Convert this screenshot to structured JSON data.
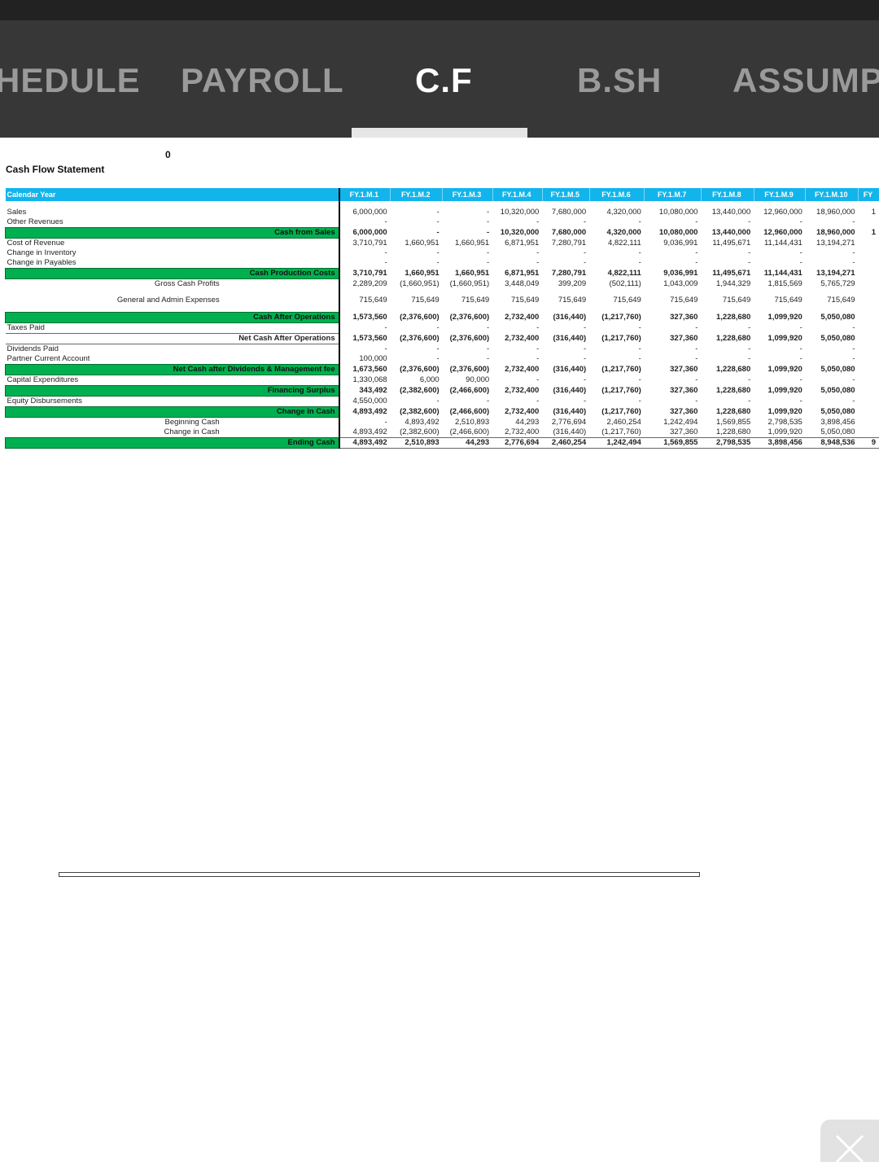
{
  "tabs": [
    {
      "label": "HEDULE",
      "active": false
    },
    {
      "label": "PAYROLL",
      "active": false
    },
    {
      "label": "C.F",
      "active": true
    },
    {
      "label": "B.SH",
      "active": false
    },
    {
      "label": "ASSUMPT",
      "active": false
    }
  ],
  "sheet": {
    "cell_value": "0",
    "title": "Cash Flow Statement",
    "header_label": "Calendar Year",
    "months": [
      "FY.1.M.1",
      "FY.1.M.2",
      "FY.1.M.3",
      "FY.1.M.4",
      "FY.1.M.5",
      "FY.1.M.6",
      "FY.1.M.7",
      "FY.1.M.8",
      "FY.1.M.9",
      "FY.1.M.10",
      "FY"
    ],
    "rows": [
      {
        "label": "Sales",
        "type": "normal",
        "values": [
          "6,000,000",
          "-",
          "-",
          "10,320,000",
          "7,680,000",
          "4,320,000",
          "10,080,000",
          "13,440,000",
          "12,960,000",
          "18,960,000",
          "1"
        ]
      },
      {
        "label": "Other Revenues",
        "type": "normal",
        "values": [
          "-",
          "-",
          "-",
          "-",
          "-",
          "-",
          "-",
          "-",
          "-",
          "-",
          ""
        ]
      },
      {
        "label": "Cash from Sales",
        "type": "green",
        "values": [
          "6,000,000",
          "-",
          "-",
          "10,320,000",
          "7,680,000",
          "4,320,000",
          "10,080,000",
          "13,440,000",
          "12,960,000",
          "18,960,000",
          "1"
        ]
      },
      {
        "label": "Cost of Revenue",
        "type": "normal",
        "values": [
          "3,710,791",
          "1,660,951",
          "1,660,951",
          "6,871,951",
          "7,280,791",
          "4,822,111",
          "9,036,991",
          "11,495,671",
          "11,144,431",
          "13,194,271",
          ""
        ]
      },
      {
        "label": "Change in Inventory",
        "type": "normal",
        "values": [
          "-",
          "-",
          "-",
          "-",
          "-",
          "-",
          "-",
          "-",
          "-",
          "-",
          ""
        ]
      },
      {
        "label": "Change in Payables",
        "type": "normal",
        "values": [
          "-",
          "-",
          "-",
          "-",
          "-",
          "-",
          "-",
          "-",
          "-",
          "-",
          ""
        ]
      },
      {
        "label": "Cash Production Costs",
        "type": "green",
        "values": [
          "3,710,791",
          "1,660,951",
          "1,660,951",
          "6,871,951",
          "7,280,791",
          "4,822,111",
          "9,036,991",
          "11,495,671",
          "11,144,431",
          "13,194,271",
          ""
        ]
      },
      {
        "label": "Gross Cash Profits",
        "type": "indent",
        "values": [
          "2,289,209",
          "(1,660,951)",
          "(1,660,951)",
          "3,448,049",
          "399,209",
          "(502,111)",
          "1,043,009",
          "1,944,329",
          "1,815,569",
          "5,765,729",
          ""
        ]
      },
      {
        "label": "General and Admin Expenses",
        "type": "indent",
        "values": [
          "715,649",
          "715,649",
          "715,649",
          "715,649",
          "715,649",
          "715,649",
          "715,649",
          "715,649",
          "715,649",
          "715,649",
          ""
        ]
      },
      {
        "label": "Cash After Operations",
        "type": "green",
        "values": [
          "1,573,560",
          "(2,376,600)",
          "(2,376,600)",
          "2,732,400",
          "(316,440)",
          "(1,217,760)",
          "327,360",
          "1,228,680",
          "1,099,920",
          "5,050,080",
          ""
        ]
      },
      {
        "label": "Taxes Paid",
        "type": "normal",
        "values": [
          "-",
          "-",
          "-",
          "-",
          "-",
          "-",
          "-",
          "-",
          "-",
          "-",
          ""
        ]
      },
      {
        "label": "Net Cash After Operations",
        "type": "bold",
        "values": [
          "1,573,560",
          "(2,376,600)",
          "(2,376,600)",
          "2,732,400",
          "(316,440)",
          "(1,217,760)",
          "327,360",
          "1,228,680",
          "1,099,920",
          "5,050,080",
          ""
        ]
      },
      {
        "label": "Dividends Paid",
        "type": "normal",
        "values": [
          "-",
          "-",
          "-",
          "-",
          "-",
          "-",
          "-",
          "-",
          "-",
          "-",
          ""
        ]
      },
      {
        "label": "Partner Current Account",
        "type": "normal",
        "values": [
          "100,000",
          "-",
          "-",
          "-",
          "-",
          "-",
          "-",
          "-",
          "-",
          "-",
          ""
        ]
      },
      {
        "label": "Net Cash after Dividends & Management fee",
        "type": "green",
        "values": [
          "1,673,560",
          "(2,376,600)",
          "(2,376,600)",
          "2,732,400",
          "(316,440)",
          "(1,217,760)",
          "327,360",
          "1,228,680",
          "1,099,920",
          "5,050,080",
          ""
        ]
      },
      {
        "label": "Capital Expenditures",
        "type": "normal",
        "values": [
          "1,330,068",
          "6,000",
          "90,000",
          "-",
          "-",
          "-",
          "-",
          "-",
          "-",
          "-",
          ""
        ]
      },
      {
        "label": "Financing Surplus",
        "type": "green",
        "values": [
          "343,492",
          "(2,382,600)",
          "(2,466,600)",
          "2,732,400",
          "(316,440)",
          "(1,217,760)",
          "327,360",
          "1,228,680",
          "1,099,920",
          "5,050,080",
          ""
        ]
      },
      {
        "label": "Equity Disbursements",
        "type": "normal",
        "values": [
          "4,550,000",
          "-",
          "-",
          "-",
          "-",
          "-",
          "-",
          "-",
          "-",
          "-",
          ""
        ]
      },
      {
        "label": "Change in Cash",
        "type": "green",
        "values": [
          "4,893,492",
          "(2,382,600)",
          "(2,466,600)",
          "2,732,400",
          "(316,440)",
          "(1,217,760)",
          "327,360",
          "1,228,680",
          "1,099,920",
          "5,050,080",
          ""
        ]
      },
      {
        "label": "Beginning Cash",
        "type": "indent",
        "values": [
          "-",
          "4,893,492",
          "2,510,893",
          "44,293",
          "2,776,694",
          "2,460,254",
          "1,242,494",
          "1,569,855",
          "2,798,535",
          "3,898,456",
          ""
        ]
      },
      {
        "label": "Change in Cash",
        "type": "indent",
        "values": [
          "4,893,492",
          "(2,382,600)",
          "(2,466,600)",
          "2,732,400",
          "(316,440)",
          "(1,217,760)",
          "327,360",
          "1,228,680",
          "1,099,920",
          "5,050,080",
          ""
        ]
      },
      {
        "label": "Ending Cash",
        "type": "green",
        "values": [
          "4,893,492",
          "2,510,893",
          "44,293",
          "2,776,694",
          "2,460,254",
          "1,242,494",
          "1,569,855",
          "2,798,535",
          "3,898,456",
          "8,948,536",
          "9"
        ]
      }
    ]
  },
  "close_icon": "close-icon"
}
